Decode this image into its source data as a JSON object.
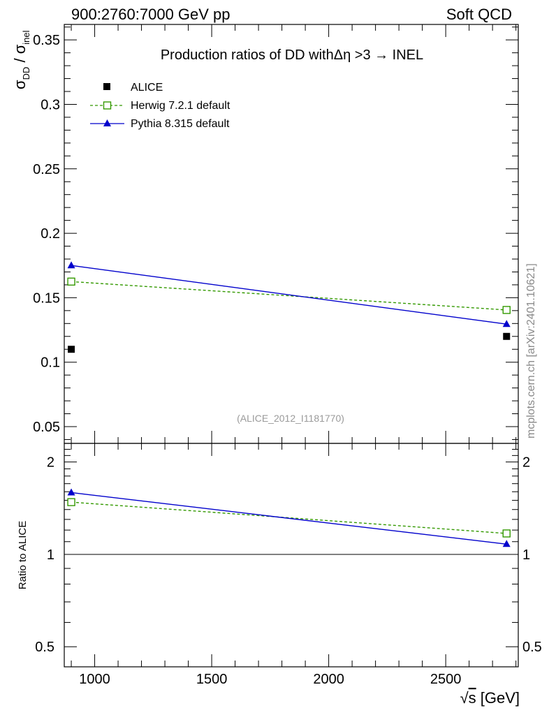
{
  "header": {
    "left": "900:2760:7000 GeV pp",
    "right": "Soft QCD"
  },
  "side_text": "mcplots.cern.ch [arXiv:2401.10621]",
  "colors": {
    "alice": "#000000",
    "herwig": "#339900",
    "pythia": "#0000cc",
    "watermark": "#9a9a9a"
  },
  "chart_data": [
    {
      "type": "scatter",
      "panel": "main",
      "title": "Production ratios of DD withΔη >3 → INEL",
      "ylabel": "σDD / σinel",
      "ylabel_parts": {
        "sigma": "σ",
        "sub1": "DD",
        "slash": " / ",
        "sub2": "inel"
      },
      "watermark": "(ALICE_2012_I1181770)",
      "xlim": [
        870,
        2810
      ],
      "ylim": [
        0.037,
        0.362
      ],
      "yticks": [
        0.05,
        0.1,
        0.15,
        0.2,
        0.25,
        0.3,
        0.35
      ],
      "ytick_labels": [
        "0.05",
        "0.1",
        "0.15",
        "0.2",
        "0.25",
        "0.3",
        "0.35"
      ],
      "legend_position": "top-left",
      "series": [
        {
          "name": "ALICE",
          "key": "alice",
          "style": "points",
          "marker": "square-filled",
          "x": [
            900,
            2760
          ],
          "y": [
            0.11,
            0.12
          ]
        },
        {
          "name": "Herwig 7.2.1 default",
          "key": "herwig",
          "style": "dashed-line",
          "marker": "square-open",
          "x": [
            900,
            2760
          ],
          "y": [
            0.1625,
            0.1405
          ]
        },
        {
          "name": "Pythia 8.315 default",
          "key": "pythia",
          "style": "line",
          "marker": "triangle-filled",
          "x": [
            900,
            2760
          ],
          "y": [
            0.175,
            0.1295
          ]
        }
      ]
    },
    {
      "type": "scatter",
      "panel": "ratio",
      "ylabel": "Ratio to ALICE",
      "xlabel": "√s [GeV]",
      "xlabel_parts": {
        "root": "√",
        "var": "s",
        "unit": " [GeV]"
      },
      "xlim": [
        870,
        2810
      ],
      "ylim": [
        0.43,
        2.3
      ],
      "yscale": "log",
      "yticks": [
        0.5,
        1,
        2
      ],
      "ytick_labels": [
        "0.5",
        "1",
        "2"
      ],
      "xticks": [
        1000,
        1500,
        2000,
        2500
      ],
      "xtick_labels": [
        "1000",
        "1500",
        "2000",
        "2500"
      ],
      "reference_line": 1,
      "series": [
        {
          "name": "Herwig 7.2.1 default",
          "key": "herwig",
          "style": "dashed-line",
          "marker": "square-open",
          "x": [
            900,
            2760
          ],
          "y": [
            1.48,
            1.17
          ]
        },
        {
          "name": "Pythia 8.315 default",
          "key": "pythia",
          "style": "line",
          "marker": "triangle-filled",
          "x": [
            900,
            2760
          ],
          "y": [
            1.59,
            1.08
          ]
        }
      ]
    }
  ]
}
